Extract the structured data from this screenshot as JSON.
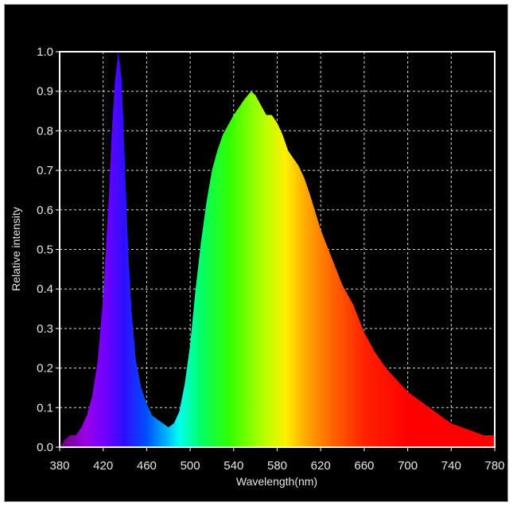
{
  "chart_data": {
    "type": "area",
    "title": "",
    "xlabel": "Wavelength(nm)",
    "ylabel": "Relative intensity",
    "xlim": [
      380,
      780
    ],
    "ylim": [
      0,
      1.0
    ],
    "grid": true,
    "fill": "visible-spectrum gradient",
    "x_ticks": [
      "380",
      "420",
      "460",
      "500",
      "540",
      "580",
      "620",
      "660",
      "700",
      "740",
      "780"
    ],
    "y_ticks": [
      "0.0",
      "0.1",
      "0.2",
      "0.3",
      "0.4",
      "0.5",
      "0.6",
      "0.7",
      "0.8",
      "0.9",
      "1.0"
    ],
    "x": [
      380,
      385,
      390,
      395,
      400,
      405,
      410,
      415,
      420,
      425,
      428,
      431,
      434,
      437,
      440,
      443,
      446,
      450,
      455,
      460,
      465,
      470,
      475,
      480,
      485,
      490,
      495,
      500,
      505,
      510,
      515,
      520,
      525,
      530,
      540,
      550,
      556,
      560,
      566,
      570,
      575,
      580,
      585,
      590,
      595,
      600,
      605,
      610,
      620,
      630,
      640,
      650,
      660,
      670,
      680,
      690,
      700,
      710,
      720,
      730,
      740,
      750,
      760,
      770,
      780
    ],
    "y": [
      0.0,
      0.02,
      0.03,
      0.03,
      0.05,
      0.08,
      0.13,
      0.22,
      0.38,
      0.62,
      0.8,
      0.93,
      1.0,
      0.93,
      0.72,
      0.5,
      0.35,
      0.22,
      0.15,
      0.11,
      0.08,
      0.07,
      0.06,
      0.05,
      0.06,
      0.09,
      0.16,
      0.26,
      0.4,
      0.52,
      0.62,
      0.7,
      0.75,
      0.79,
      0.84,
      0.88,
      0.9,
      0.89,
      0.86,
      0.84,
      0.84,
      0.82,
      0.79,
      0.75,
      0.73,
      0.71,
      0.68,
      0.64,
      0.55,
      0.48,
      0.41,
      0.36,
      0.29,
      0.24,
      0.2,
      0.17,
      0.14,
      0.12,
      0.1,
      0.08,
      0.06,
      0.05,
      0.04,
      0.03,
      0.03
    ],
    "colors": {
      "background": "#000000",
      "grid": "#d8d8d8",
      "axis": "#ffffff",
      "text": "#e6e6e6"
    }
  }
}
